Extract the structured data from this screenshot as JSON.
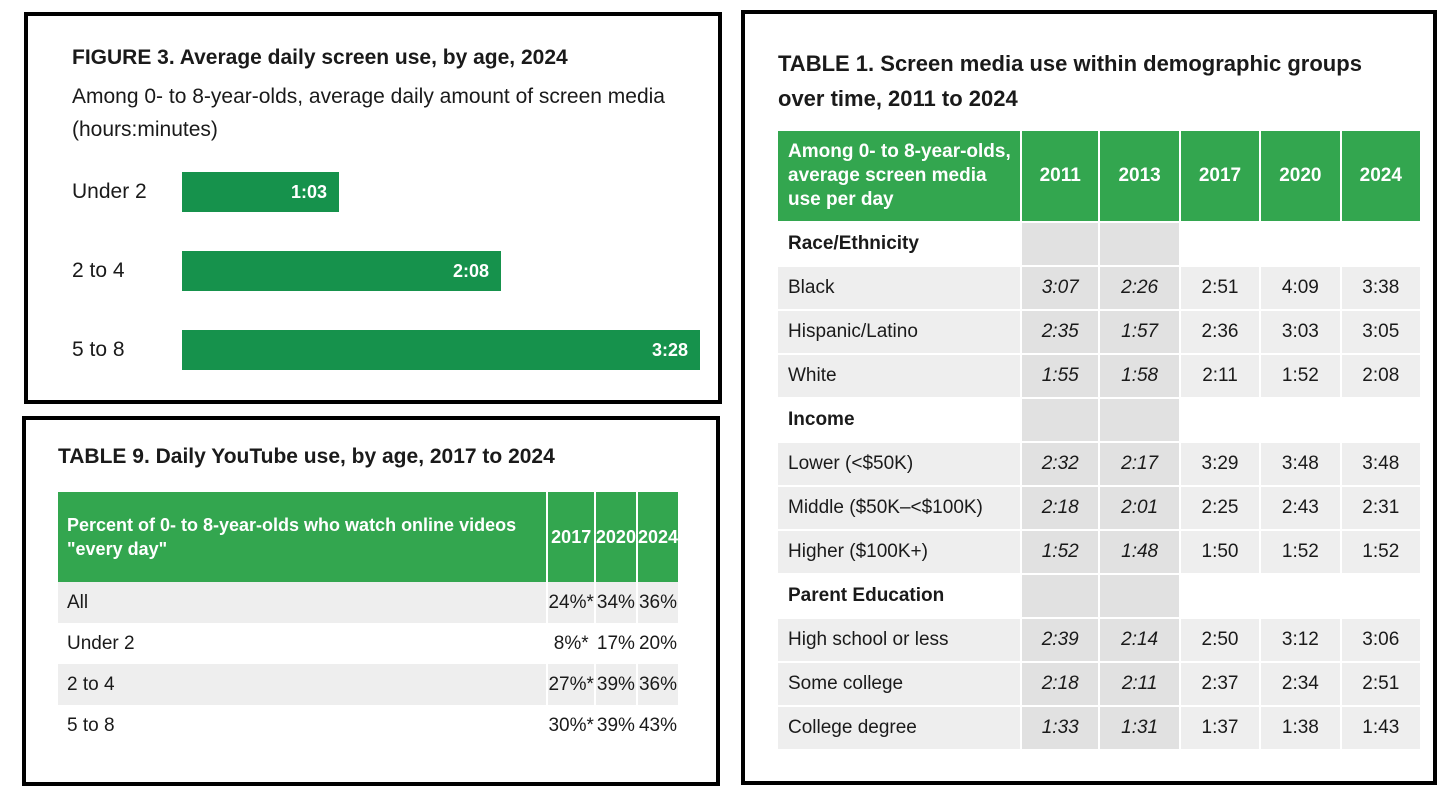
{
  "figure3": {
    "title": "FIGURE 3. Average daily screen use, by age, 2024",
    "subtitle": "Among 0- to 8-year-olds, average daily amount of screen media (hours:minutes)"
  },
  "table9": {
    "title": "TABLE 9. Daily YouTube use, by age, 2017 to 2024",
    "header": "Percent of 0- to 8-year-olds who watch online videos \"every day\"",
    "years": [
      "2017",
      "2020",
      "2024"
    ],
    "rows": [
      {
        "label": "All",
        "values": [
          "24%*",
          "34%",
          "36%"
        ]
      },
      {
        "label": "Under 2",
        "values": [
          "8%*",
          "17%",
          "20%"
        ]
      },
      {
        "label": "2 to 4",
        "values": [
          "27%*",
          "39%",
          "36%"
        ]
      },
      {
        "label": "5 to 8",
        "values": [
          "30%*",
          "39%",
          "43%"
        ]
      }
    ]
  },
  "table1": {
    "title": "TABLE 1. Screen media use within demographic groups over time, 2011 to 2024",
    "header": "Among 0- to 8-year-olds, average screen media use per day",
    "years": [
      "2011",
      "2013",
      "2017",
      "2020",
      "2024"
    ],
    "groups": [
      {
        "name": "Race/Ethnicity",
        "rows": [
          {
            "label": "Black",
            "values": [
              "3:07",
              "2:26",
              "2:51",
              "4:09",
              "3:38"
            ]
          },
          {
            "label": "Hispanic/Latino",
            "values": [
              "2:35",
              "1:57",
              "2:36",
              "3:03",
              "3:05"
            ]
          },
          {
            "label": "White",
            "values": [
              "1:55",
              "1:58",
              "2:11",
              "1:52",
              "2:08"
            ]
          }
        ]
      },
      {
        "name": "Income",
        "rows": [
          {
            "label": "Lower (<$50K)",
            "values": [
              "2:32",
              "2:17",
              "3:29",
              "3:48",
              "3:48"
            ]
          },
          {
            "label": "Middle ($50K–<$100K)",
            "values": [
              "2:18",
              "2:01",
              "2:25",
              "2:43",
              "2:31"
            ]
          },
          {
            "label": "Higher ($100K+)",
            "values": [
              "1:52",
              "1:48",
              "1:50",
              "1:52",
              "1:52"
            ]
          }
        ]
      },
      {
        "name": "Parent Education",
        "rows": [
          {
            "label": "High school or less",
            "values": [
              "2:39",
              "2:14",
              "2:50",
              "3:12",
              "3:06"
            ]
          },
          {
            "label": "Some college",
            "values": [
              "2:18",
              "2:11",
              "2:37",
              "2:34",
              "2:51"
            ]
          },
          {
            "label": "College degree",
            "values": [
              "1:33",
              "1:31",
              "1:37",
              "1:38",
              "1:43"
            ]
          }
        ]
      }
    ]
  },
  "chart_data": {
    "type": "bar",
    "orientation": "horizontal",
    "categories": [
      "Under 2",
      "2 to 4",
      "5 to 8"
    ],
    "values": [
      63,
      128,
      208
    ],
    "value_labels": [
      "1:03",
      "2:08",
      "3:28"
    ],
    "unit": "minutes",
    "xlim": [
      0,
      208
    ],
    "bar_color": "#16924c",
    "grid": false
  }
}
